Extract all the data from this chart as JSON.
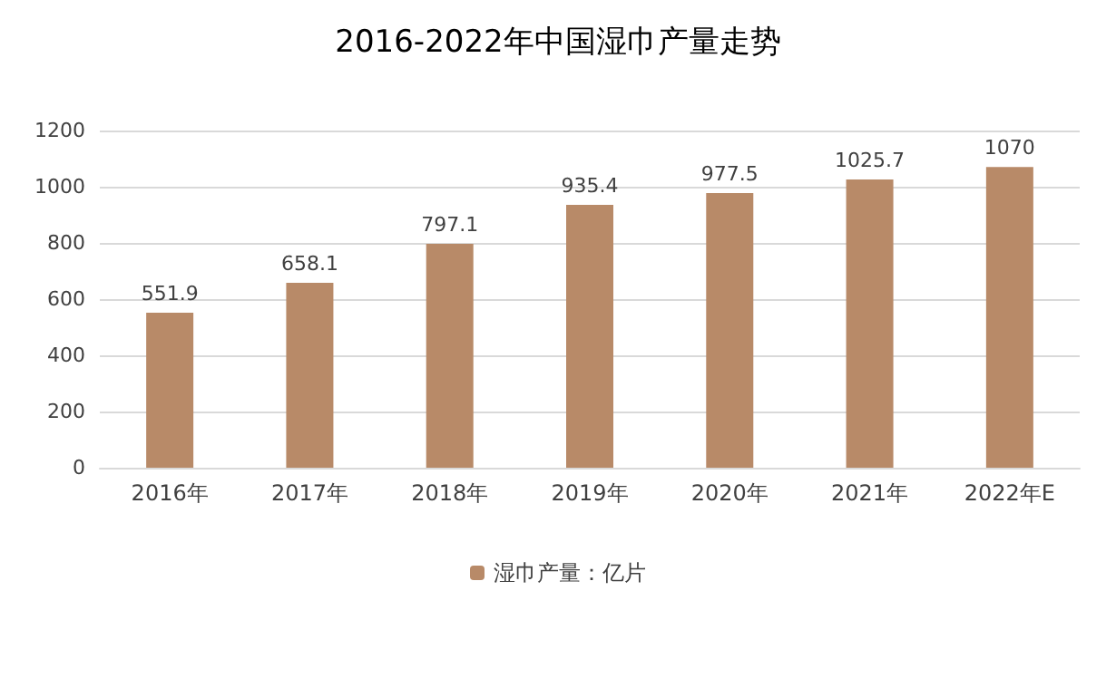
{
  "chart_data": {
    "type": "bar",
    "title": "2016-2022年中国湿巾产量走势",
    "categories": [
      "2016年",
      "2017年",
      "2018年",
      "2019年",
      "2020年",
      "2021年",
      "2022年E"
    ],
    "series": [
      {
        "name": "湿巾产量：亿片",
        "color": "#b88a68",
        "values": [
          551.9,
          658.1,
          797.1,
          935.4,
          977.5,
          1025.7,
          1070
        ]
      }
    ],
    "ylim": [
      0,
      1200
    ],
    "yticks": [
      0,
      200,
      400,
      600,
      800,
      1000,
      1200
    ],
    "grid": "y",
    "legend": "bottom",
    "data_labels": true
  }
}
